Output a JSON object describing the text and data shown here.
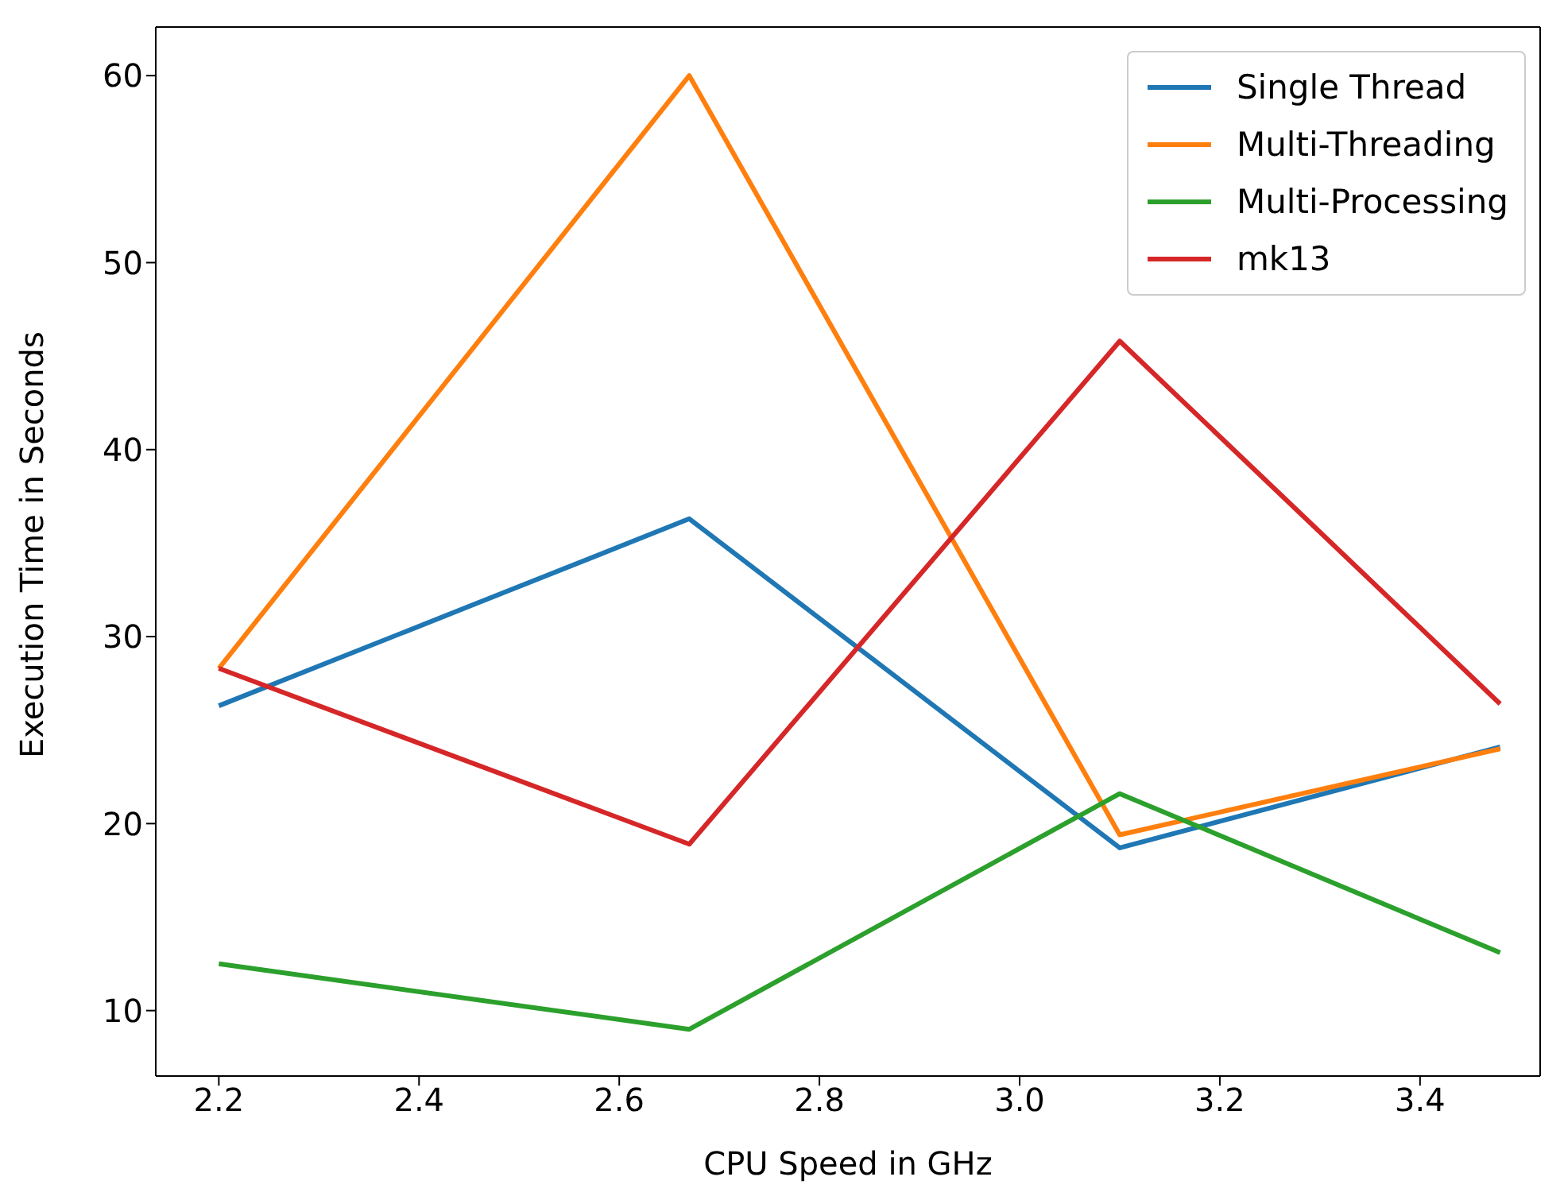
{
  "chart_data": {
    "type": "line",
    "xlabel": "CPU Speed in GHz",
    "ylabel": "Execution Time in Seconds",
    "x": [
      2.2,
      2.67,
      3.1,
      3.48
    ],
    "series": [
      {
        "name": "Single Thread",
        "color": "#1f77b4",
        "values": [
          26.3,
          36.3,
          18.7,
          24.1
        ]
      },
      {
        "name": "Multi-Threading",
        "color": "#ff7f0e",
        "values": [
          28.3,
          60,
          19.4,
          24.0
        ]
      },
      {
        "name": "Multi-Processing",
        "color": "#2ca02c",
        "values": [
          12.5,
          9.0,
          21.6,
          13.1
        ]
      },
      {
        "name": "mk13",
        "color": "#d62728",
        "values": [
          28.3,
          18.9,
          45.8,
          26.4
        ]
      }
    ],
    "xlim": [
      2.137,
      3.52
    ],
    "xticks": [
      2.2,
      2.4,
      2.6,
      2.8,
      {
        "value": 3,
        "label": "3.0"
      },
      3.2,
      3.4
    ],
    "ylim": [
      6.5,
      62.6
    ],
    "yticks": [
      10,
      20,
      30,
      40,
      50,
      60
    ],
    "grid": false,
    "legend": "top right",
    "marker": "none",
    "line_style": "solid"
  }
}
